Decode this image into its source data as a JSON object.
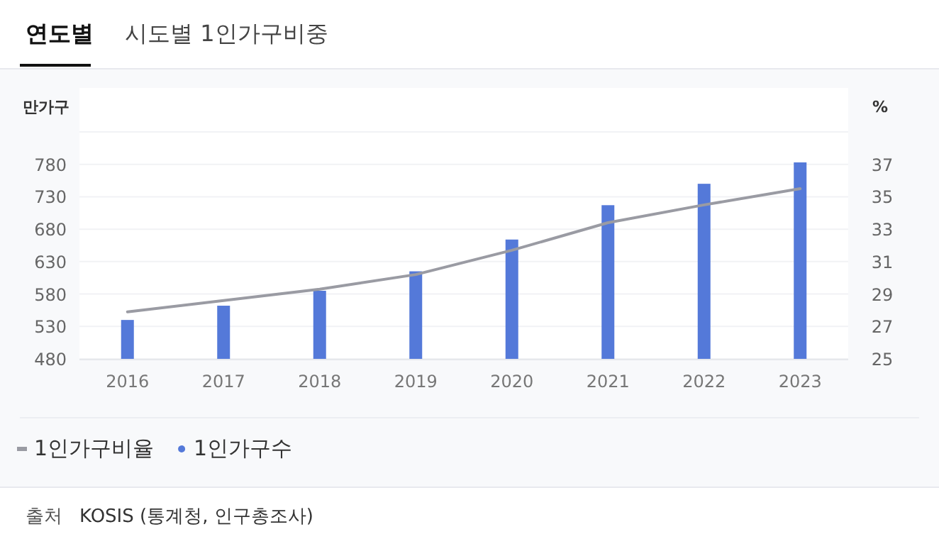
{
  "chart_data": {
    "type": "bar",
    "title": "연도별",
    "subtitle": "시도별 1인가구비중",
    "categories": [
      "2016",
      "2017",
      "2018",
      "2019",
      "2020",
      "2021",
      "2022",
      "2023"
    ],
    "series": [
      {
        "name": "1인가구비율",
        "type": "line",
        "axis": "y2",
        "color": "#9a9ba3",
        "values": [
          27.9,
          28.6,
          29.3,
          30.2,
          31.7,
          33.4,
          34.5,
          35.5
        ]
      },
      {
        "name": "1인가구수",
        "color": "#5479d9",
        "values": [
          540,
          562,
          585,
          615,
          664,
          717,
          750,
          783
        ]
      }
    ],
    "ylabel": "만가구",
    "y2label": "%",
    "ylim": [
      480,
      830
    ],
    "yticks": [
      480,
      530,
      580,
      630,
      680,
      730,
      780,
      {
        "value": 830,
        "label": null
      }
    ],
    "y2lim": [
      25,
      39
    ],
    "y2ticks": [
      25,
      27,
      29,
      31,
      33,
      35,
      37
    ],
    "grid": "y",
    "legend": "bottom",
    "annotations": [
      "출처",
      "KOSIS (통계청, 인구총조사)"
    ]
  }
}
